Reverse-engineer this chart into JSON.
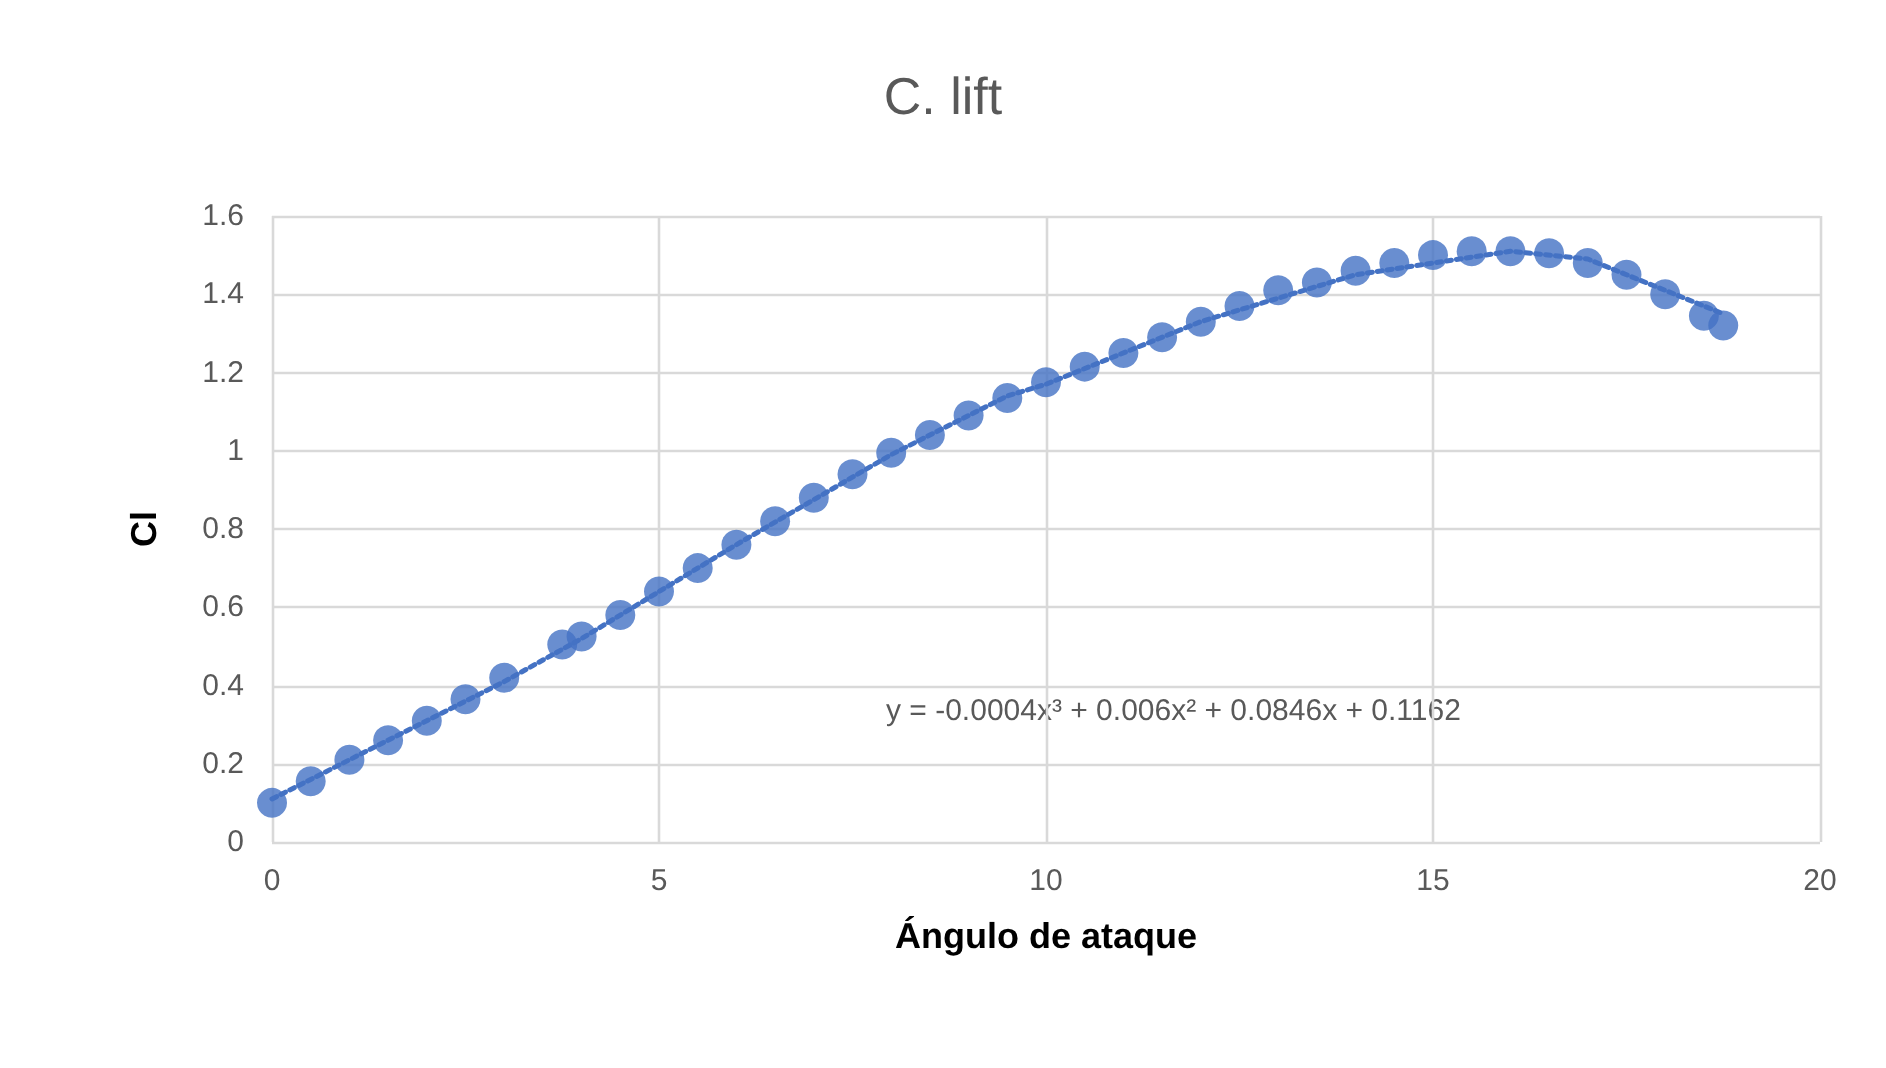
{
  "chart_data": {
    "type": "scatter",
    "title": "C. lift",
    "xlabel": "Ángulo de ataque",
    "ylabel": "Cl",
    "annotations": [
      "y = -0.0004x³ + 0.006x² + 0.0846x + 0.1162"
    ],
    "series": [
      {
        "color": "#4472c4",
        "marker": "circle",
        "x": [
          0,
          0.5,
          1,
          1.5,
          2,
          2.5,
          3,
          3.75,
          4,
          4.5,
          5,
          5.5,
          6,
          6.5,
          7,
          7.5,
          8,
          8.5,
          9,
          9.5,
          10,
          10.5,
          11,
          11.5,
          12,
          12.5,
          13,
          13.5,
          14,
          14.5,
          15,
          15.5,
          16,
          16.5,
          17,
          17.5,
          18,
          18.5,
          18.75
        ],
        "values": [
          0.1,
          0.155,
          0.21,
          0.26,
          0.31,
          0.365,
          0.42,
          0.505,
          0.525,
          0.58,
          0.64,
          0.7,
          0.76,
          0.82,
          0.88,
          0.94,
          0.995,
          1.04,
          1.09,
          1.135,
          1.175,
          1.215,
          1.25,
          1.29,
          1.33,
          1.37,
          1.41,
          1.43,
          1.46,
          1.48,
          1.5,
          1.51,
          1.51,
          1.505,
          1.48,
          1.45,
          1.4,
          1.345,
          1.32
        ]
      },
      {
        "type": "line",
        "color": "#4472c4",
        "marker": "none",
        "line_style": "dotted",
        "x": [
          0,
          2,
          3,
          4,
          6,
          8,
          9.5,
          10,
          12,
          14,
          16,
          17,
          18,
          18.75
        ],
        "values": [
          0.11,
          0.31,
          0.41,
          0.52,
          0.76,
          0.99,
          1.14,
          1.17,
          1.33,
          1.45,
          1.51,
          1.49,
          1.41,
          1.35
        ]
      }
    ],
    "xlim": [
      0,
      20
    ],
    "xticks": [
      0,
      5,
      10,
      15,
      20
    ],
    "ylim": [
      0,
      1.6
    ],
    "yticks": [
      0,
      0.2,
      0.4,
      0.6,
      0.8,
      1,
      1.2,
      1.4,
      1.6
    ],
    "grid": true
  }
}
